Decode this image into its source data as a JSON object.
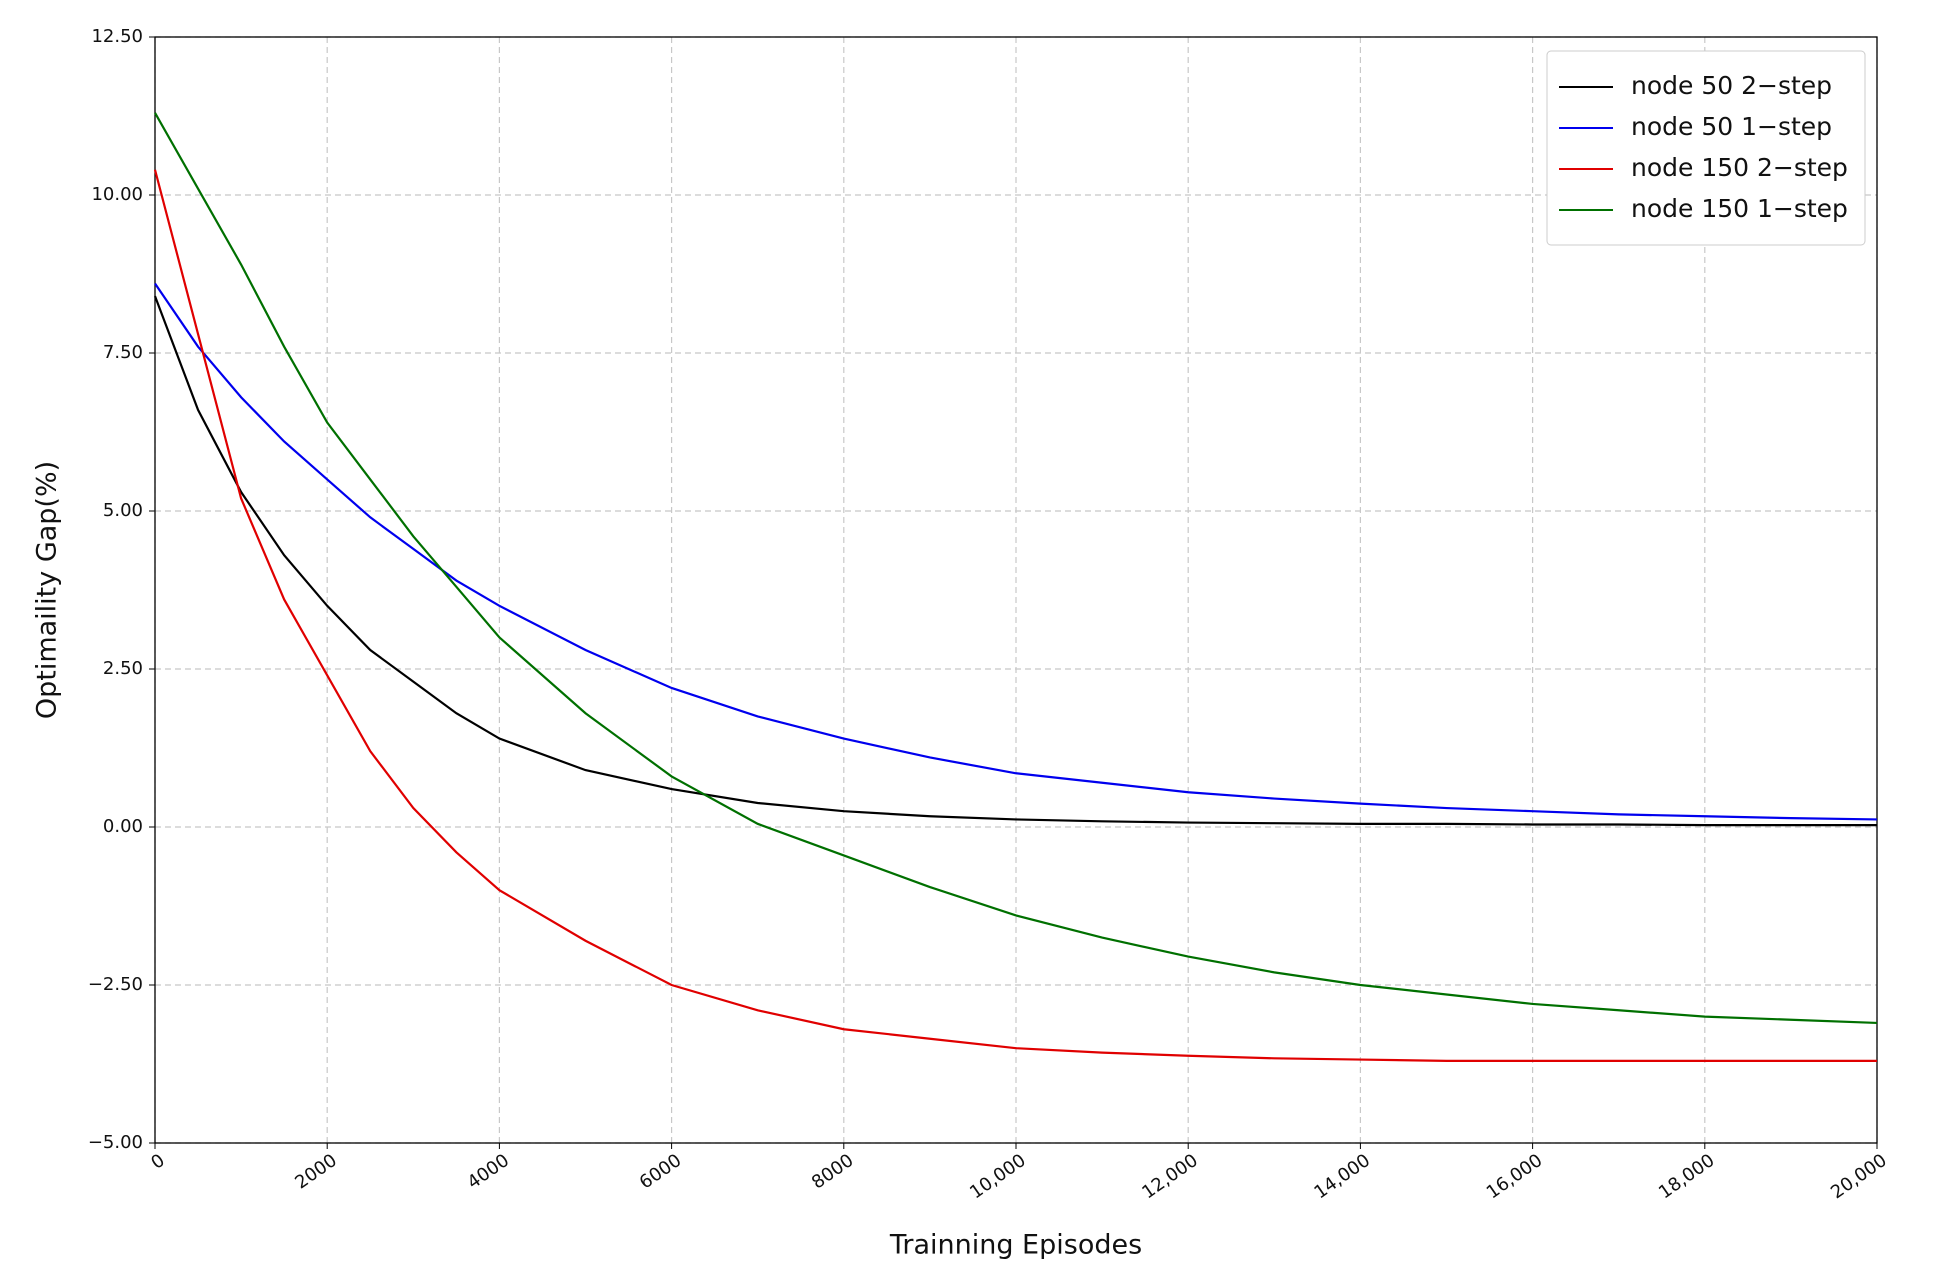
{
  "chart_data": {
    "type": "line",
    "x_label": "Trainning Episodes",
    "y_label": "Optimaility Gap(%)",
    "x": [
      0,
      500,
      1000,
      1500,
      2000,
      2500,
      3000,
      3500,
      4000,
      5000,
      6000,
      7000,
      8000,
      9000,
      10000,
      11000,
      12000,
      13000,
      14000,
      15000,
      16000,
      17000,
      18000,
      19000,
      20000
    ],
    "series": [
      {
        "name": "node 50 2−step",
        "color": "#000000",
        "values": [
          8.4,
          6.6,
          5.3,
          4.3,
          3.5,
          2.8,
          2.3,
          1.8,
          1.4,
          0.9,
          0.6,
          0.38,
          0.25,
          0.17,
          0.12,
          0.09,
          0.07,
          0.06,
          0.05,
          0.05,
          0.04,
          0.04,
          0.03,
          0.03,
          0.03
        ]
      },
      {
        "name": "node 50 1−step",
        "color": "#0000ee",
        "values": [
          8.6,
          7.6,
          6.8,
          6.1,
          5.5,
          4.9,
          4.4,
          3.9,
          3.5,
          2.8,
          2.2,
          1.75,
          1.4,
          1.1,
          0.85,
          0.7,
          0.55,
          0.45,
          0.37,
          0.3,
          0.25,
          0.2,
          0.17,
          0.14,
          0.12
        ]
      },
      {
        "name": "node 150 2−step",
        "color": "#e00000",
        "values": [
          10.4,
          7.8,
          5.2,
          3.6,
          2.4,
          1.2,
          0.3,
          -0.4,
          -1.0,
          -1.8,
          -2.5,
          -2.9,
          -3.2,
          -3.35,
          -3.5,
          -3.57,
          -3.62,
          -3.66,
          -3.68,
          -3.7,
          -3.7,
          -3.7,
          -3.7,
          -3.7,
          -3.7
        ]
      },
      {
        "name": "node 150 1−step",
        "color": "#007000",
        "values": [
          11.3,
          10.1,
          8.9,
          7.6,
          6.4,
          5.5,
          4.6,
          3.8,
          3.0,
          1.8,
          0.8,
          0.05,
          -0.45,
          -0.95,
          -1.4,
          -1.75,
          -2.05,
          -2.3,
          -2.5,
          -2.65,
          -2.8,
          -2.9,
          -3.0,
          -3.05,
          -3.1
        ]
      }
    ],
    "xlim": [
      0,
      20000
    ],
    "xticks": [
      0,
      2000,
      4000,
      6000,
      8000,
      {
        "value": 10000,
        "label": "10,000"
      },
      {
        "value": 12000,
        "label": "12,000"
      },
      {
        "value": 14000,
        "label": "14,000"
      },
      {
        "value": 16000,
        "label": "16,000"
      },
      {
        "value": 18000,
        "label": "18,000"
      },
      {
        "value": 20000,
        "label": "20,000"
      }
    ],
    "ylim": [
      -5,
      12.5
    ],
    "yticks": [
      {
        "value": -5,
        "label": "−5.00"
      },
      {
        "value": -2.5,
        "label": "−2.50"
      },
      {
        "value": 0,
        "label": "0.00"
      },
      {
        "value": 2.5,
        "label": "2.50"
      },
      {
        "value": 5,
        "label": "5.00"
      },
      {
        "value": 7.5,
        "label": "7.50"
      },
      {
        "value": 10,
        "label": "10.00"
      },
      {
        "value": 12.5,
        "label": "12.50"
      }
    ],
    "grid": true,
    "legend": "upper right"
  }
}
